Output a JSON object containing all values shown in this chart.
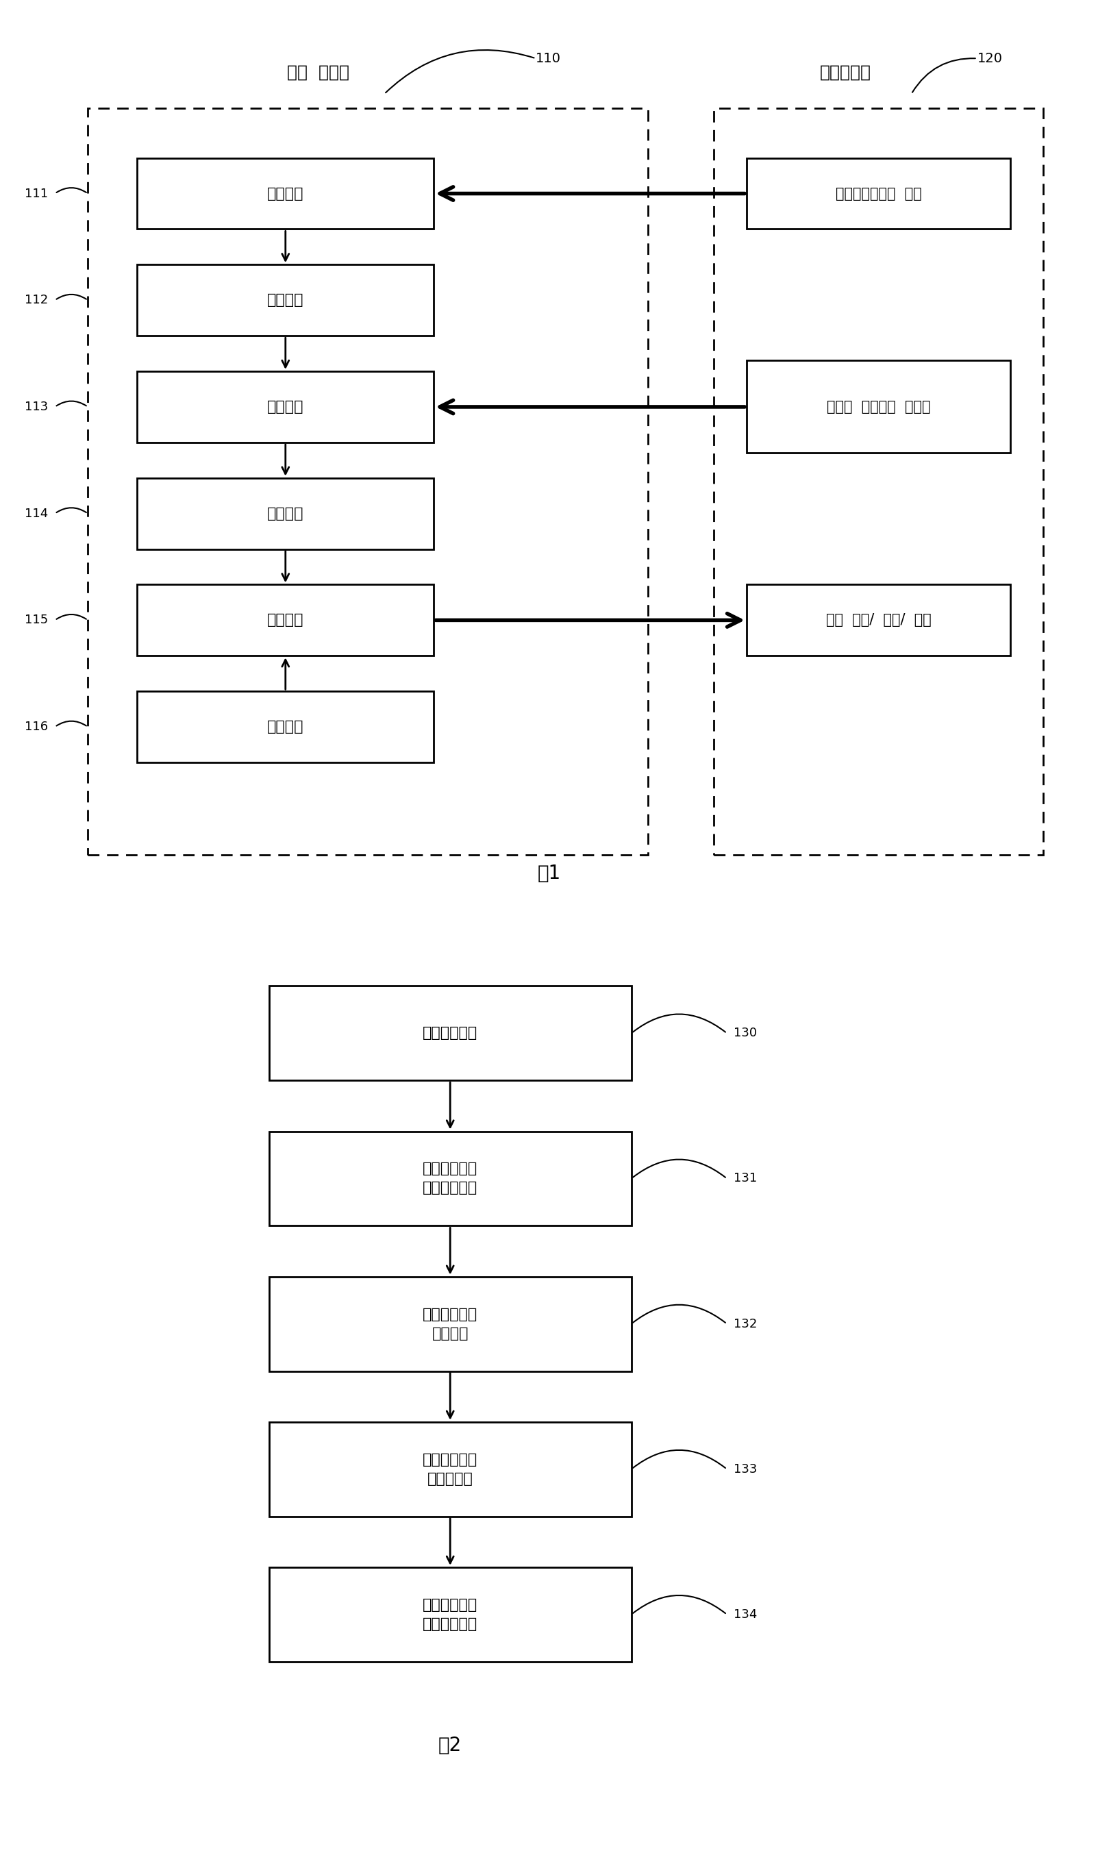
{
  "fig1": {
    "title": "图1",
    "label_110": "110",
    "label_120": "120",
    "label_client": "本地  客户端",
    "label_server": "用例服务器",
    "left_boxes": [
      {
        "label": "同步模块",
        "num": "111"
      },
      {
        "label": "登录模块",
        "num": "112"
      },
      {
        "label": "导出模块",
        "num": "113"
      },
      {
        "label": "执行模块",
        "num": "114"
      },
      {
        "label": "上传模块",
        "num": "115"
      },
      {
        "label": "日志模块",
        "num": "116"
      }
    ],
    "right_boxes": [
      {
        "label": "域、项目、用户  信息"
      },
      {
        "label": "层次化  的用例集  及用例"
      },
      {
        "label": "用例  实例/  故障/  需求"
      }
    ]
  },
  "fig2": {
    "title": "图2",
    "boxes": [
      {
        "label": "处理当前目录",
        "num": "130"
      },
      {
        "label": "处理当前目录\n下所有用例集",
        "num": "131"
      },
      {
        "label": "处理用例集下\n所有用例",
        "num": "132"
      },
      {
        "label": "处理执行实例\n下所有步骤",
        "num": "133"
      },
      {
        "label": "处理当前目录\n下所有子目录",
        "num": "134"
      }
    ]
  }
}
